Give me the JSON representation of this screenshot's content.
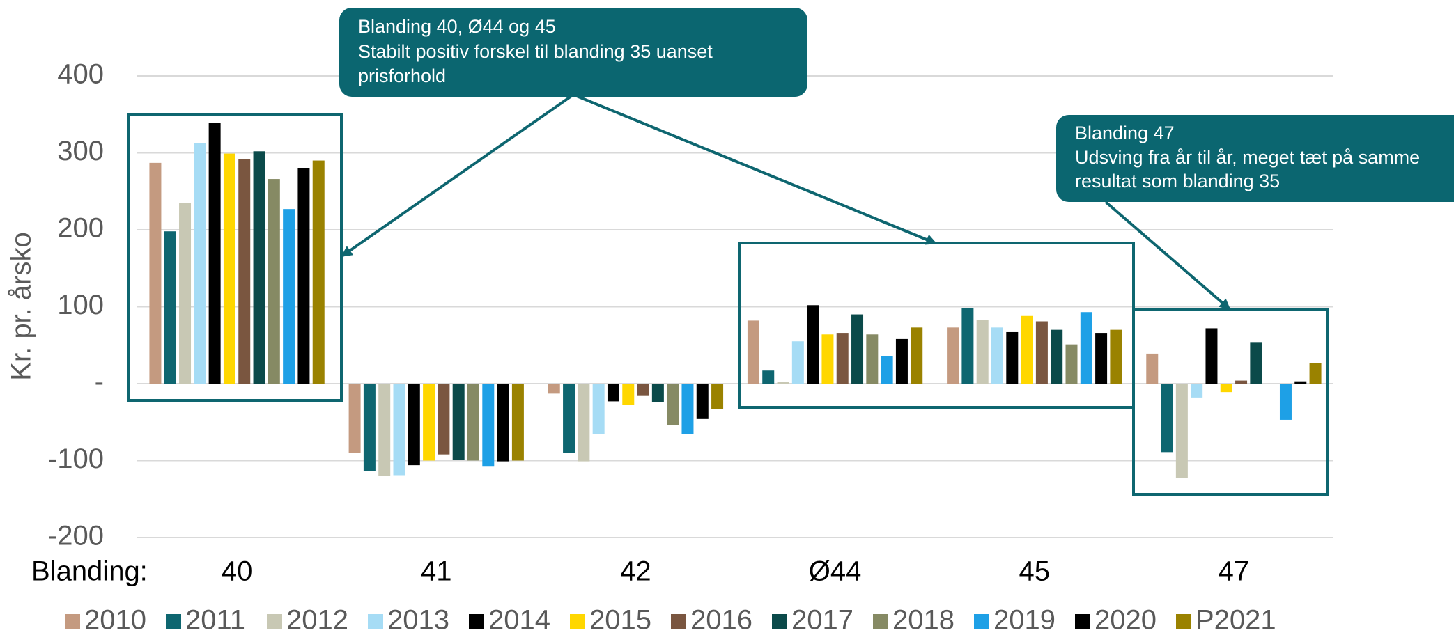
{
  "chart_data": {
    "type": "bar",
    "y_axis_label": "Kr. pr. årsko",
    "x_axis_label": "Blanding:",
    "categories": [
      "40",
      "41",
      "42",
      "Ø44",
      "45",
      "47"
    ],
    "ylim": [
      -200,
      400
    ],
    "yticks": [
      -200,
      -100,
      {
        "value": 0,
        "label": "-"
      },
      100,
      200,
      300,
      400
    ],
    "grid": true,
    "legend": "bottom",
    "annotations": [
      {
        "lines": [
          "Blanding 40, Ø44 og 45",
          "Stabilt positiv forskel til blanding 35 uanset",
          "prisforhold"
        ]
      },
      {
        "lines": [
          "Blanding 47",
          "Udsving fra år til år, meget tæt på samme",
          "resultat som blanding 35"
        ]
      }
    ],
    "series": [
      {
        "name": "2010",
        "color": "#c49a80",
        "values": [
          287,
          -90,
          -13,
          82,
          73,
          39
        ]
      },
      {
        "name": "2011",
        "color": "#0e6670",
        "values": [
          198,
          -114,
          -90,
          17,
          98,
          -89
        ]
      },
      {
        "name": "2012",
        "color": "#c8c8b4",
        "values": [
          235,
          -120,
          -101,
          2,
          83,
          -123
        ]
      },
      {
        "name": "2013",
        "color": "#a6dcf5",
        "values": [
          313,
          -119,
          -66,
          55,
          73,
          -18
        ]
      },
      {
        "name": "2014",
        "color": "#000000",
        "values": [
          339,
          -106,
          -23,
          102,
          67,
          72
        ]
      },
      {
        "name": "2015",
        "color": "#ffd700",
        "values": [
          299,
          -100,
          -28,
          64,
          88,
          -11
        ]
      },
      {
        "name": "2016",
        "color": "#7a5640",
        "values": [
          292,
          -92,
          -16,
          66,
          81,
          4
        ]
      },
      {
        "name": "2017",
        "color": "#0b4a4a",
        "values": [
          302,
          -99,
          -24,
          90,
          70,
          54
        ]
      },
      {
        "name": "2018",
        "color": "#868a64",
        "values": [
          266,
          -100,
          -54,
          64,
          51,
          0
        ]
      },
      {
        "name": "2019",
        "color": "#1ea0e6",
        "values": [
          227,
          -107,
          -66,
          36,
          93,
          -47
        ]
      },
      {
        "name": "2020",
        "color": "#000000",
        "values": [
          280,
          -101,
          -46,
          58,
          66,
          3
        ]
      },
      {
        "name": "P2021",
        "color": "#9a8200",
        "values": [
          290,
          -100,
          -33,
          73,
          70,
          27
        ]
      }
    ]
  }
}
